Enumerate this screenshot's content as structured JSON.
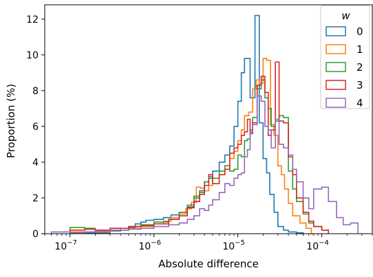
{
  "chart_data": {
    "type": "histogram-step",
    "xlabel": "Absolute difference",
    "ylabel": "Proportion (%)",
    "xscale": "log",
    "xlim": [
      5e-08,
      0.0004
    ],
    "ylim": [
      0,
      12.8
    ],
    "yticks": [
      0,
      2,
      4,
      6,
      8,
      10,
      12
    ],
    "xticks_major": [
      {
        "value": 1e-07,
        "base": "10",
        "exp": "−7"
      },
      {
        "value": 1e-06,
        "base": "10",
        "exp": "−6"
      },
      {
        "value": 1e-05,
        "base": "10",
        "exp": "−5"
      },
      {
        "value": 0.0001,
        "base": "10",
        "exp": "−4"
      }
    ],
    "legend": {
      "title": "w",
      "position": "top-right"
    },
    "series": [
      {
        "name": "0",
        "color": "#1f77b4",
        "edges": [
          1e-07,
          3e-07,
          4e-07,
          5e-07,
          6e-07,
          7e-07,
          8e-07,
          1e-06,
          1.3e-06,
          1.6e-06,
          2e-06,
          2.5e-06,
          3e-06,
          3.5e-06,
          4e-06,
          4.5e-06,
          5e-06,
          6e-06,
          7e-06,
          8e-06,
          9e-06,
          1e-05,
          1.1e-05,
          1.2e-05,
          1.4e-05,
          1.6e-05,
          1.8e-05,
          2e-05,
          2.2e-05,
          2.4e-05,
          2.7e-05,
          3e-05,
          3.5e-05,
          4e-05,
          5e-05,
          6e-05,
          6.2e-05
        ],
        "values": [
          0.05,
          0.15,
          0.2,
          0.35,
          0.55,
          0.65,
          0.75,
          0.8,
          0.9,
          1.05,
          1.2,
          1.5,
          2.0,
          2.4,
          2.9,
          3.1,
          3.5,
          4.0,
          4.4,
          4.9,
          6.0,
          7.4,
          9.0,
          9.8,
          7.6,
          12.2,
          6.2,
          4.2,
          3.4,
          2.2,
          1.2,
          0.4,
          0.2,
          0.1,
          0.05,
          0
        ]
      },
      {
        "name": "1",
        "color": "#ff7f0e",
        "edges": [
          1e-07,
          3e-07,
          5e-07,
          7e-07,
          1e-06,
          1.3e-06,
          1.6e-06,
          2e-06,
          2.4e-06,
          2.8e-06,
          3.2e-06,
          3.6e-06,
          4e-06,
          4.5e-06,
          5e-06,
          6e-06,
          7e-06,
          8e-06,
          9e-06,
          1e-05,
          1.1e-05,
          1.2e-05,
          1.35e-05,
          1.5e-05,
          1.65e-05,
          1.8e-05,
          2e-05,
          2.2e-05,
          2.45e-05,
          2.7e-05,
          3e-05,
          3.3e-05,
          3.6e-05,
          4e-05,
          4.5e-05,
          5.5e-05,
          6.5e-05,
          7.5e-05,
          8e-05
        ],
        "values": [
          0.1,
          0.2,
          0.3,
          0.4,
          0.55,
          0.7,
          0.9,
          1.1,
          1.4,
          1.75,
          2.6,
          2.55,
          2.4,
          2.7,
          3.1,
          3.3,
          3.8,
          4.2,
          4.6,
          5.2,
          5.8,
          6.6,
          6.8,
          8.1,
          8.6,
          8.4,
          9.8,
          9.7,
          6.1,
          5.5,
          3.8,
          3.3,
          2.5,
          1.7,
          1.0,
          0.6,
          0.3,
          0
        ]
      },
      {
        "name": "2",
        "color": "#2ca02c",
        "edges": [
          1e-07,
          1.5e-07,
          2e-07,
          3e-07,
          4e-07,
          5e-07,
          7e-07,
          1e-06,
          1.5e-06,
          2e-06,
          2.5e-06,
          3e-06,
          3.5e-06,
          4e-06,
          4.5e-06,
          5e-06,
          6e-06,
          7e-06,
          8e-06,
          9e-06,
          1e-05,
          1.1e-05,
          1.2e-05,
          1.3e-05,
          1.4e-05,
          1.5e-05,
          1.7e-05,
          1.9e-05,
          2.1e-05,
          2.3e-05,
          2.5e-05,
          2.8e-05,
          3.1e-05,
          3.5e-05,
          4e-05,
          4.5e-05,
          5e-05,
          6e-05,
          7e-05,
          8e-05,
          0.0001,
          0.00012
        ],
        "values": [
          0.35,
          0.3,
          0.2,
          0.3,
          0.2,
          0.4,
          0.5,
          0.65,
          0.8,
          1.2,
          1.6,
          2.1,
          2.3,
          2.9,
          3.2,
          3.1,
          3.5,
          3.8,
          3.5,
          3.6,
          4.4,
          4.3,
          5.2,
          5.3,
          5.8,
          6.5,
          8.1,
          8.6,
          7.6,
          7.0,
          6.0,
          6.3,
          6.6,
          6.5,
          3.5,
          2.5,
          1.8,
          1.1,
          0.6,
          0.4,
          0.2
        ]
      },
      {
        "name": "3",
        "color": "#d62728",
        "edges": [
          1e-07,
          1.5e-07,
          2e-07,
          3e-07,
          4e-07,
          5e-07,
          7e-07,
          1e-06,
          1.5e-06,
          2e-06,
          2.5e-06,
          3e-06,
          3.5e-06,
          4e-06,
          4.5e-06,
          5e-06,
          6e-06,
          7e-06,
          8e-06,
          9e-06,
          1e-05,
          1.1e-05,
          1.2e-05,
          1.3e-05,
          1.4e-05,
          1.5e-05,
          1.7e-05,
          1.9e-05,
          2.1e-05,
          2.3e-05,
          2.5e-05,
          2.8e-05,
          3.1e-05,
          3.5e-05,
          4e-05,
          4.5e-05,
          5e-05,
          6e-05,
          7e-05,
          8e-05,
          0.0001,
          0.00012
        ],
        "values": [
          0.2,
          0.25,
          0.2,
          0.3,
          0.3,
          0.4,
          0.45,
          0.55,
          0.8,
          1.0,
          1.45,
          1.8,
          2.2,
          2.7,
          3.3,
          2.8,
          3.3,
          3.6,
          4.5,
          4.8,
          5.0,
          5.5,
          5.7,
          6.4,
          5.6,
          6.2,
          8.3,
          8.8,
          7.9,
          5.5,
          5.8,
          9.6,
          6.3,
          6.2,
          4.3,
          3.3,
          2.0,
          1.2,
          0.7,
          0.4,
          0.2
        ]
      },
      {
        "name": "4",
        "color": "#9467bd",
        "edges": [
          6e-08,
          1e-07,
          1.5e-07,
          2e-07,
          3e-07,
          4e-07,
          5e-07,
          7e-07,
          1e-06,
          1.5e-06,
          2e-06,
          2.5e-06,
          3e-06,
          3.5e-06,
          4e-06,
          4.5e-06,
          5e-06,
          6e-06,
          7e-06,
          8e-06,
          9e-06,
          1e-05,
          1.1e-05,
          1.2e-05,
          1.3e-05,
          1.4e-05,
          1.5e-05,
          1.7e-05,
          1.9e-05,
          2.1e-05,
          2.3e-05,
          2.5e-05,
          2.8e-05,
          3.1e-05,
          3.5e-05,
          4e-05,
          4.5e-05,
          5e-05,
          6e-05,
          7e-05,
          8e-05,
          0.0001,
          0.00012,
          0.00015,
          0.00018,
          0.00022,
          0.00027
        ],
        "values": [
          0.1,
          0.05,
          0.1,
          0.15,
          0.2,
          0.2,
          0.25,
          0.3,
          0.4,
          0.5,
          0.6,
          0.8,
          1.0,
          1.4,
          1.3,
          1.6,
          1.9,
          2.3,
          2.8,
          2.7,
          3.1,
          3.3,
          3.4,
          4.3,
          4.7,
          5.7,
          6.1,
          7.7,
          7.4,
          6.0,
          5.8,
          4.8,
          6.4,
          5.0,
          4.8,
          4.4,
          3.6,
          2.9,
          2.0,
          1.4,
          2.5,
          2.6,
          1.8,
          0.9,
          0.5,
          0.6
        ]
      }
    ]
  }
}
